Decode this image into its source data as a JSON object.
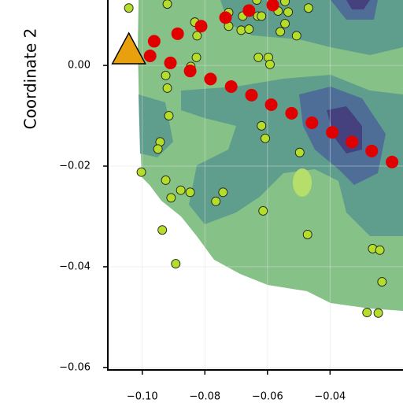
{
  "chart_data": {
    "type": "scatter",
    "ylabel": "Coordinate 2",
    "xlim": [
      -0.111,
      -0.0167
    ],
    "ylim": [
      -0.0605,
      0.013
    ],
    "xticks": [
      {
        "value": -0.1,
        "label": "−0.10"
      },
      {
        "value": -0.08,
        "label": "−0.08"
      },
      {
        "value": -0.06,
        "label": "−0.06"
      },
      {
        "value": -0.04,
        "label": "−0.04"
      }
    ],
    "yticks": [
      {
        "value": 0.0,
        "label": "0.00"
      },
      {
        "value": -0.02,
        "label": "−0.02"
      },
      {
        "value": -0.04,
        "label": "−0.04"
      },
      {
        "value": -0.06,
        "label": "−0.06"
      }
    ],
    "grid": true,
    "series": [
      {
        "color": "#b5de2b",
        "marker": "circle",
        "x": [
          -0.1043,
          -0.092,
          -0.0832,
          -0.0825,
          -0.0827,
          -0.0845,
          -0.0925,
          -0.092,
          -0.0915,
          -0.0943,
          -0.095,
          -0.1003,
          -0.0925,
          -0.0877,
          -0.0847,
          -0.0908,
          -0.0742,
          -0.0765,
          -0.0936,
          -0.0893,
          -0.0724,
          -0.0684,
          -0.0679,
          -0.0631,
          -0.0619,
          -0.0566,
          -0.0534,
          -0.0469,
          -0.0544,
          -0.0559,
          -0.0507,
          -0.0629,
          -0.0597,
          -0.0592,
          -0.0619,
          -0.0607,
          -0.0614,
          -0.0497,
          -0.0472,
          -0.0264,
          -0.0241,
          -0.0234,
          -0.0282,
          -0.0246,
          -0.0634,
          -0.0544,
          -0.0724,
          -0.0659
        ],
        "y": [
          0.0114,
          0.0122,
          0.0086,
          0.0059,
          0.0016,
          -0.0002,
          -0.002,
          -0.0045,
          -0.01,
          -0.0152,
          -0.0166,
          -0.0212,
          -0.0228,
          -0.0248,
          -0.0252,
          -0.0263,
          -0.0252,
          -0.027,
          -0.0327,
          -0.0394,
          0.0078,
          0.007,
          0.0098,
          0.0098,
          0.0098,
          0.0108,
          0.0106,
          0.0114,
          0.0083,
          0.0067,
          0.0059,
          0.0016,
          0.0016,
          0.0002,
          -0.012,
          -0.0145,
          -0.0289,
          -0.0173,
          -0.0336,
          -0.0364,
          -0.0367,
          -0.043,
          -0.0491,
          -0.0492,
          0.013,
          0.0127,
          0.0105,
          0.0072
        ]
      },
      {
        "color": "#e00000",
        "marker": "circle",
        "x": [
          -0.0975,
          -0.0962,
          -0.091,
          -0.0887,
          -0.0847,
          -0.0812,
          -0.0782,
          -0.0734,
          -0.0716,
          -0.0659,
          -0.0651,
          -0.0583,
          -0.0588,
          -0.0523,
          -0.0458,
          -0.0393,
          -0.033,
          -0.0267,
          -0.0202
        ],
        "y": [
          0.0019,
          0.0048,
          0.0005,
          0.0063,
          -0.0011,
          0.0078,
          -0.0027,
          0.0095,
          -0.0042,
          0.0109,
          -0.0059,
          0.012,
          -0.0078,
          -0.0095,
          -0.0114,
          -0.0133,
          -0.0152,
          -0.017,
          -0.0192
        ]
      },
      {
        "color": "#e8a00f",
        "marker": "triangle",
        "x": [
          -0.1043
        ],
        "y": [
          0.003
        ]
      }
    ]
  }
}
